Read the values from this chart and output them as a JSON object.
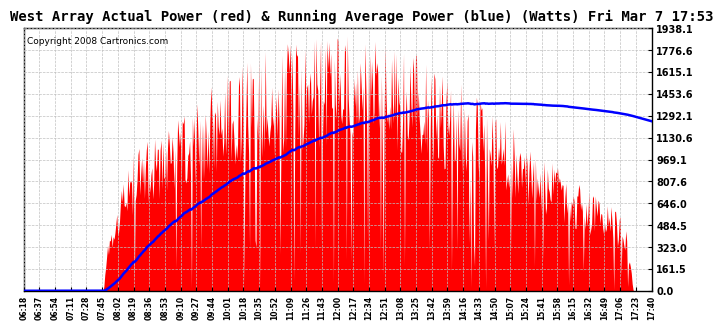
{
  "title": "West Array Actual Power (red) & Running Average Power (blue) (Watts) Fri Mar 7 17:53",
  "copyright": "Copyright 2008 Cartronics.com",
  "y_max": 1938.1,
  "y_min": 0.0,
  "y_ticks": [
    0.0,
    161.5,
    323.0,
    484.5,
    646.0,
    807.6,
    969.1,
    1130.6,
    1292.1,
    1453.6,
    1615.1,
    1776.6,
    1938.1
  ],
  "x_labels": [
    "06:18",
    "06:37",
    "06:54",
    "07:11",
    "07:28",
    "07:45",
    "08:02",
    "08:19",
    "08:36",
    "08:53",
    "09:10",
    "09:27",
    "09:44",
    "10:01",
    "10:18",
    "10:35",
    "10:52",
    "11:09",
    "11:26",
    "11:43",
    "12:00",
    "12:17",
    "12:34",
    "12:51",
    "13:08",
    "13:25",
    "13:42",
    "13:59",
    "14:16",
    "14:33",
    "14:50",
    "15:07",
    "15:24",
    "15:41",
    "15:58",
    "16:15",
    "16:32",
    "16:49",
    "17:06",
    "17:23",
    "17:40"
  ],
  "bg_color": "#ffffff",
  "plot_bg_color": "#ffffff",
  "grid_color": "#c0c0c0",
  "actual_color": "#ff0000",
  "avg_color": "#0000ff",
  "title_fontsize": 10,
  "copyright_fontsize": 6.5
}
